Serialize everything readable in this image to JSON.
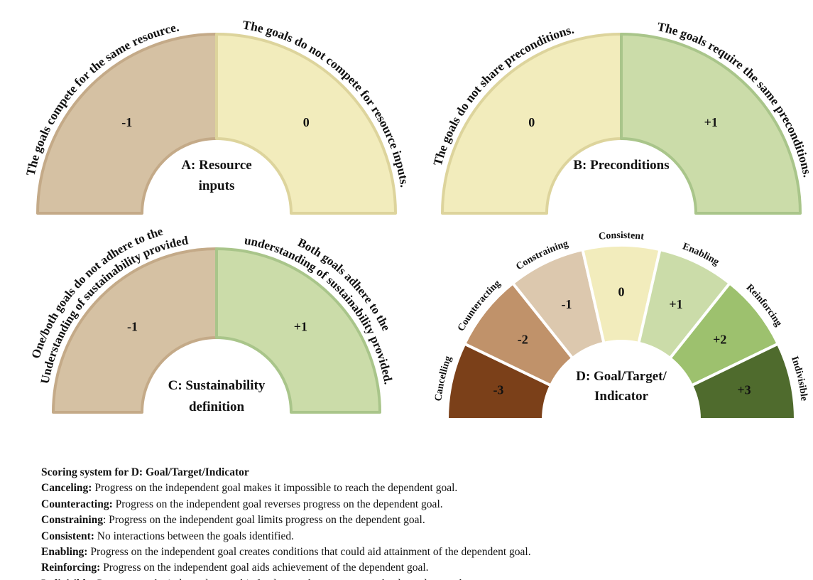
{
  "panels": [
    {
      "title_lines": [
        "A: Resource",
        "inputs"
      ],
      "segments": [
        {
          "score": "-1",
          "label_lines": [
            "The goals compete for the same resource."
          ]
        },
        {
          "score": "0",
          "label_lines": [
            "The goals do not compete for resource inputs."
          ]
        }
      ]
    },
    {
      "title_lines": [
        "B: Preconditions"
      ],
      "segments": [
        {
          "score": "0",
          "label_lines": [
            "The goals do not share preconditions."
          ]
        },
        {
          "score": "+1",
          "label_lines": [
            "The goals require the same preconditions."
          ]
        }
      ]
    },
    {
      "title_lines": [
        "C: Sustainability",
        "definition"
      ],
      "segments": [
        {
          "score": "-1",
          "label_lines": [
            "One/both goals do not adhere to the",
            "Understanding of sustainability provided"
          ]
        },
        {
          "score": "+1",
          "label_lines": [
            "Both goals adhere to the",
            "understanding of sustainability provided."
          ]
        }
      ]
    },
    {
      "title_lines": [
        "D: Goal/Target/",
        "Indicator"
      ],
      "segments": [
        {
          "score": "-3",
          "label_lines": [
            "Cancelling"
          ]
        },
        {
          "score": "-2",
          "label_lines": [
            "Counteracting"
          ]
        },
        {
          "score": "-1",
          "label_lines": [
            "Constraining"
          ]
        },
        {
          "score": "0",
          "label_lines": [
            "Consistent"
          ]
        },
        {
          "score": "+1",
          "label_lines": [
            "Enabling"
          ]
        },
        {
          "score": "+2",
          "label_lines": [
            "Reinforcing"
          ]
        },
        {
          "score": "+3",
          "label_lines": [
            "Indivisible"
          ]
        }
      ]
    }
  ],
  "legend": {
    "heading": "Scoring system for D: Goal/Target/Indicator",
    "items": [
      {
        "term": "Canceling:",
        "text": " Progress on the independent goal makes it impossible to reach the dependent goal."
      },
      {
        "term": "Counteracting:",
        "text": " Progress on the independent goal reverses progress on the dependent goal."
      },
      {
        "term": "Constraining",
        "text": ": Progress on the independent goal limits progress on the dependent goal."
      },
      {
        "term": "Consistent:",
        "text": " No interactions between the goals identified."
      },
      {
        "term": "Enabling:",
        "text": " Progress on the independent goal creates conditions that could aid attainment of the dependent goal."
      },
      {
        "term": "Reinforcing:",
        "text": " Progress on the independent goal aids achievement of the dependent goal."
      },
      {
        "term": "Indivisible:",
        "text": " Progress on the independent goal is fundamental to progress on the dependent goal."
      }
    ]
  }
}
